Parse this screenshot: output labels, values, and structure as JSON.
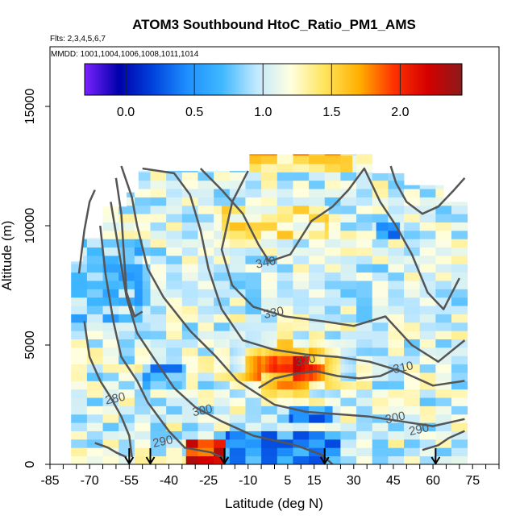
{
  "chart_data": {
    "type": "heatmap",
    "title": "ATOM3 Southbound HtoC_Ratio_PM1_AMS",
    "subtitle_flights": "Flts: 2,3,4,5,6,7",
    "subtitle_dates": "MMDD: 1001,1004,1006,1008,1011,1014",
    "xlabel": "Latitude (deg N)",
    "ylabel": "Altitude (m)",
    "xlim": [
      -85,
      85
    ],
    "ylim": [
      0,
      17500
    ],
    "x_tick_labels": [
      "-85",
      "-70",
      "-55",
      "-40",
      "-25",
      "-10",
      "5",
      "15",
      "30",
      "45",
      "60",
      "75"
    ],
    "x_tick_values": [
      -85,
      -70,
      -55,
      -40,
      -25,
      -10,
      5,
      15,
      30,
      45,
      60,
      75
    ],
    "y_tick_labels": [
      "0",
      "5000",
      "10000",
      "15000"
    ],
    "y_tick_values": [
      0,
      5000,
      10000,
      15000
    ],
    "colorbar": {
      "range": [
        -0.3,
        2.45
      ],
      "tick_labels": [
        "0.0",
        "0.5",
        "1.0",
        "1.5",
        "2.0"
      ],
      "tick_values": [
        0.0,
        0.5,
        1.0,
        1.5,
        2.0
      ],
      "colors": [
        "#7a22ff",
        "#0000aa",
        "#0044dd",
        "#1e90ff",
        "#3fb8ff",
        "#bfe8ff",
        "#ffffe0",
        "#ffe45c",
        "#ffb000",
        "#ff3300",
        "#d40000",
        "#8b1a1a"
      ]
    },
    "contours": [
      {
        "label": "280",
        "label_x": -60,
        "label_y": 2600
      },
      {
        "label": "290",
        "label_x": -42,
        "label_y": 800
      },
      {
        "label": "290",
        "label_x": 55,
        "label_y": 1300
      },
      {
        "label": "300",
        "label_x": -27,
        "label_y": 2100
      },
      {
        "label": "300",
        "label_x": 46,
        "label_y": 1800
      },
      {
        "label": "310",
        "label_x": 49,
        "label_y": 3900
      },
      {
        "label": "320",
        "label_x": 12,
        "label_y": 4200
      },
      {
        "label": "330",
        "label_x": 0,
        "label_y": 6200
      },
      {
        "label": "340",
        "label_x": -3,
        "label_y": 8300
      }
    ],
    "arrow_latitudes": [
      -55,
      -47,
      -19,
      19,
      61
    ],
    "grid": false
  }
}
